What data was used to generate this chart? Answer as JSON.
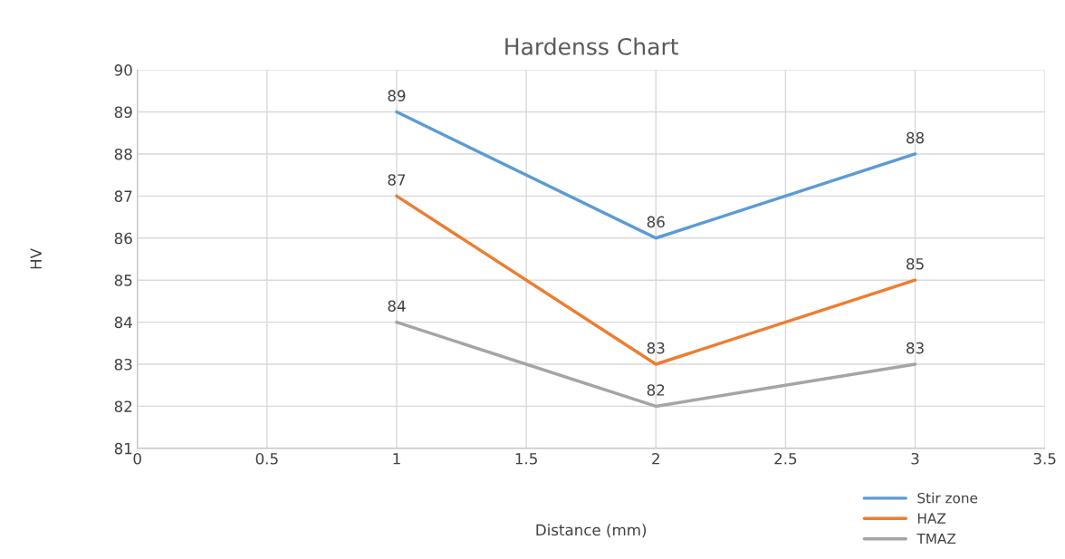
{
  "chart_data": {
    "type": "line",
    "title": "Hardenss Chart",
    "xlabel": "Distance (mm)",
    "ylabel": "HV",
    "xlim": [
      0,
      3.5
    ],
    "xticks": [
      0,
      0.5,
      1,
      1.5,
      2,
      2.5,
      3,
      3.5
    ],
    "ylim": [
      81,
      90
    ],
    "yticks": [
      81,
      82,
      83,
      84,
      85,
      86,
      87,
      88,
      89,
      90
    ],
    "grid": true,
    "legend": "bottom right",
    "marker": "none",
    "line_style": "solid",
    "data_labels": true,
    "x": [
      1,
      2,
      3
    ],
    "series": [
      {
        "name": "Stir zone",
        "color": "#5b9bd5",
        "values": [
          89,
          86,
          88
        ]
      },
      {
        "name": "HAZ",
        "color": "#ed7d31",
        "values": [
          87,
          83,
          85
        ]
      },
      {
        "name": "TMAZ",
        "color": "#a5a5a5",
        "values": [
          84,
          82,
          83
        ]
      }
    ]
  }
}
